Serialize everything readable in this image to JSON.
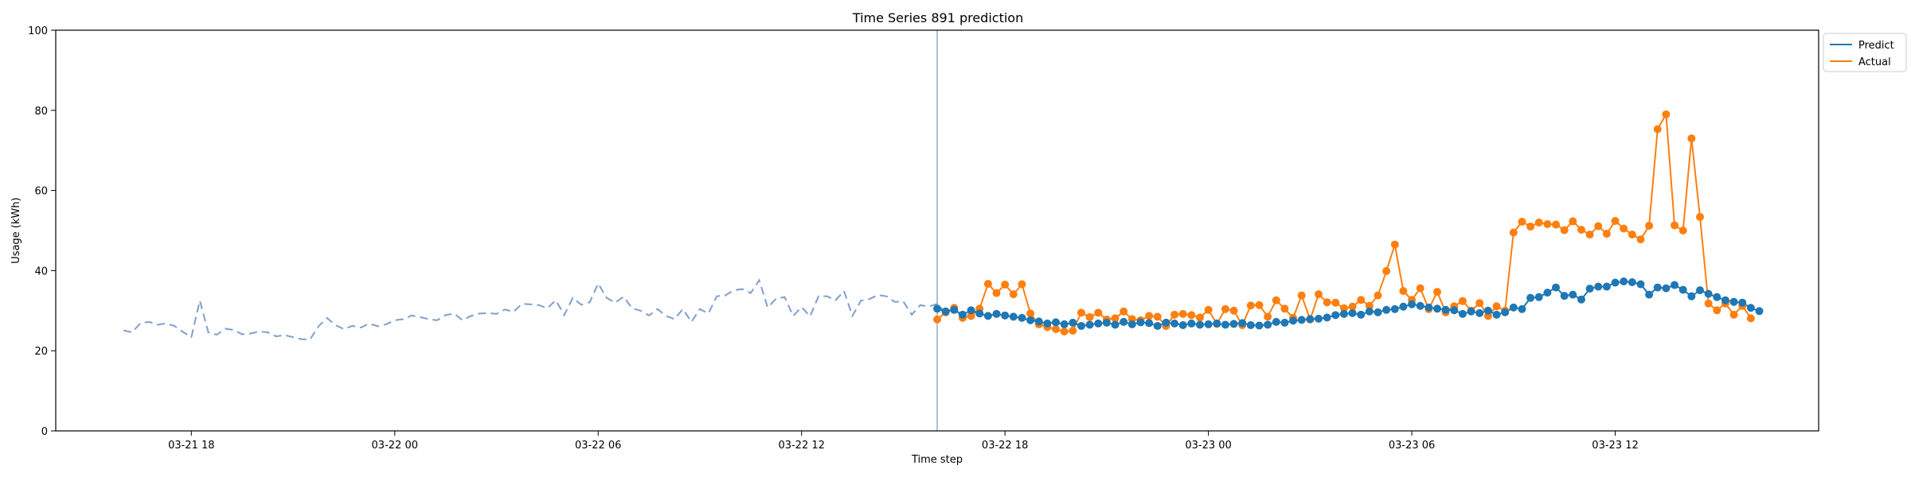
{
  "chart_data": {
    "type": "line",
    "title": "Time Series 891 prediction",
    "xlabel": "Time step",
    "ylabel": "Usage (kWh)",
    "ylim": [
      0,
      100
    ],
    "x_start": "2024-03-21 14:00",
    "x_end": "2024-03-23 18:00",
    "xticks": [
      {
        "label": "03-21 18",
        "time": "2024-03-21 18:00"
      },
      {
        "label": "03-22 00",
        "time": "2024-03-22 00:00"
      },
      {
        "label": "03-22 06",
        "time": "2024-03-22 06:00"
      },
      {
        "label": "03-22 12",
        "time": "2024-03-22 12:00"
      },
      {
        "label": "03-22 18",
        "time": "2024-03-22 18:00"
      },
      {
        "label": "03-23 00",
        "time": "2024-03-23 00:00"
      },
      {
        "label": "03-23 06",
        "time": "2024-03-23 06:00"
      },
      {
        "label": "03-23 12",
        "time": "2024-03-23 12:00"
      }
    ],
    "yticks": [
      0,
      20,
      40,
      60,
      80,
      100
    ],
    "grid": false,
    "legend_position": "outside-top-right",
    "forecast_start": "2024-03-22 16:00",
    "history": {
      "start": "2024-03-21 16:00",
      "step_minutes": 15,
      "color": "#7f9fcf",
      "values": [
        25.1,
        24.6,
        26.9,
        27.2,
        26.5,
        26.8,
        26.2,
        24.7,
        23.4,
        32.5,
        24.6,
        24.0,
        25.5,
        25.2,
        24.1,
        24.3,
        24.8,
        24.6,
        23.6,
        23.9,
        23.4,
        22.9,
        22.8,
        26.1,
        28.2,
        26.4,
        25.4,
        26.2,
        25.8,
        26.8,
        26.1,
        26.6,
        27.6,
        27.9,
        28.8,
        28.4,
        27.9,
        27.6,
        28.9,
        29.3,
        27.6,
        28.7,
        29.3,
        29.4,
        29.2,
        30.3,
        29.7,
        31.7,
        31.6,
        31.4,
        30.6,
        32.6,
        28.9,
        33.2,
        31.5,
        32.1,
        36.8,
        33.2,
        32.0,
        33.5,
        30.6,
        30.0,
        28.8,
        30.4,
        28.7,
        27.9,
        30.4,
        27.2,
        30.4,
        29.3,
        33.6,
        33.8,
        35.1,
        35.4,
        34.4,
        37.6,
        30.8,
        33.0,
        33.4,
        28.7,
        30.9,
        28.6,
        33.6,
        33.6,
        32.6,
        34.9,
        28.7,
        32.5,
        32.9,
        33.9,
        33.6,
        32.2,
        32.3,
        29.0,
        31.4,
        31.0,
        31.7,
        29.6
      ]
    },
    "series": [
      {
        "name": "Predict",
        "color": "#1f77b4",
        "start": "2024-03-22 16:00",
        "step_minutes": 15,
        "values": [
          30.5,
          29.8,
          30.2,
          29.0,
          30.1,
          29.3,
          28.7,
          29.2,
          28.8,
          28.5,
          28.2,
          27.6,
          27.3,
          26.8,
          27.1,
          26.6,
          27.0,
          26.2,
          26.5,
          26.8,
          27.0,
          26.5,
          27.2,
          26.6,
          27.1,
          26.9,
          26.2,
          27.0,
          26.8,
          26.4,
          26.8,
          26.5,
          26.6,
          26.8,
          26.5,
          26.7,
          26.9,
          26.4,
          26.3,
          26.5,
          27.2,
          27.0,
          27.5,
          27.7,
          27.9,
          28.0,
          28.3,
          28.9,
          29.2,
          29.4,
          29.0,
          29.8,
          29.6,
          30.2,
          30.4,
          31.0,
          31.6,
          31.2,
          30.8,
          30.5,
          30.2,
          30.1,
          29.2,
          29.8,
          29.4,
          30.0,
          29.0,
          29.6,
          30.8,
          30.4,
          33.2,
          33.4,
          34.5,
          35.8,
          33.7,
          34.0,
          32.8,
          35.5,
          36.0,
          36.0,
          37.0,
          37.3,
          37.1,
          36.6,
          34.0,
          35.8,
          35.6,
          36.4,
          35.2,
          33.6,
          35.1,
          34.2,
          33.4,
          32.6,
          32.2,
          32.0,
          30.7,
          29.9
        ]
      },
      {
        "name": "Actual",
        "color": "#ff7f0e",
        "start": "2024-03-22 16:00",
        "step_minutes": 15,
        "values": [
          27.8,
          29.6,
          30.7,
          28.2,
          28.7,
          30.5,
          36.7,
          34.4,
          36.5,
          34.1,
          36.6,
          29.3,
          26.6,
          25.9,
          25.4,
          24.8,
          25.0,
          29.5,
          28.4,
          29.5,
          27.8,
          28.1,
          29.8,
          27.9,
          27.6,
          28.7,
          28.5,
          26.2,
          29.0,
          29.2,
          28.9,
          28.3,
          30.2,
          26.7,
          30.4,
          30.0,
          26.4,
          31.3,
          31.4,
          28.5,
          32.6,
          30.5,
          28.2,
          33.8,
          27.8,
          34.1,
          32.1,
          32.0,
          30.6,
          31.0,
          32.7,
          31.2,
          33.8,
          39.9,
          46.5,
          34.9,
          32.7,
          35.6,
          30.4,
          34.7,
          29.6,
          31.1,
          32.4,
          30.0,
          31.9,
          28.7,
          31.1,
          30.0,
          49.5,
          52.2,
          51.0,
          52.0,
          51.6,
          51.5,
          50.1,
          52.3,
          50.2,
          49.0,
          51.1,
          49.2,
          52.4,
          50.5,
          49.0,
          47.8,
          51.2,
          75.3,
          79.0,
          51.3,
          50.0,
          73.0,
          53.4,
          31.8,
          30.1,
          31.8,
          29.0,
          31.2,
          28.1
        ]
      }
    ]
  }
}
